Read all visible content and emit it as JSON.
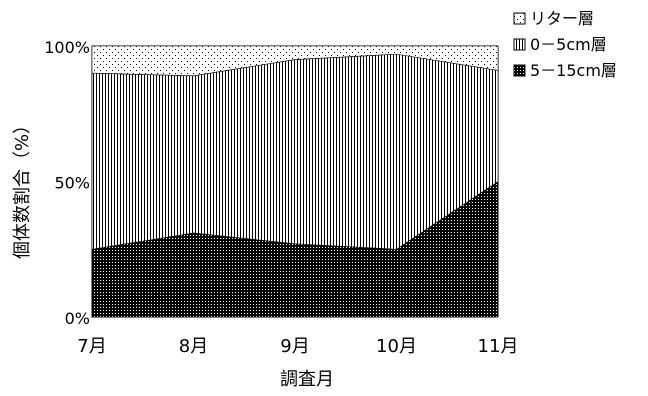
{
  "chart_data": {
    "type": "area",
    "stacked": "percent",
    "categories": [
      "7月",
      "8月",
      "9月",
      "10月",
      "11月"
    ],
    "series": [
      {
        "name": "5－15cm層",
        "values": [
          25,
          31,
          27,
          25,
          50
        ],
        "pattern": "dense-dots"
      },
      {
        "name": "0－5cm層",
        "values": [
          65,
          58,
          68,
          72,
          41
        ],
        "pattern": "vertical-stripes"
      },
      {
        "name": "リター層",
        "values": [
          10,
          11,
          5,
          3,
          9
        ],
        "pattern": "sparse-dots"
      }
    ],
    "xlabel": "調査月",
    "ylabel": "個体数割合（%）",
    "ylim": [
      0,
      100
    ],
    "yticks": [
      "0%",
      "50%",
      "100%"
    ],
    "grid": false,
    "legend_position": "top-right",
    "colors": {
      "fill": "#000000",
      "background": "#ffffff"
    }
  }
}
